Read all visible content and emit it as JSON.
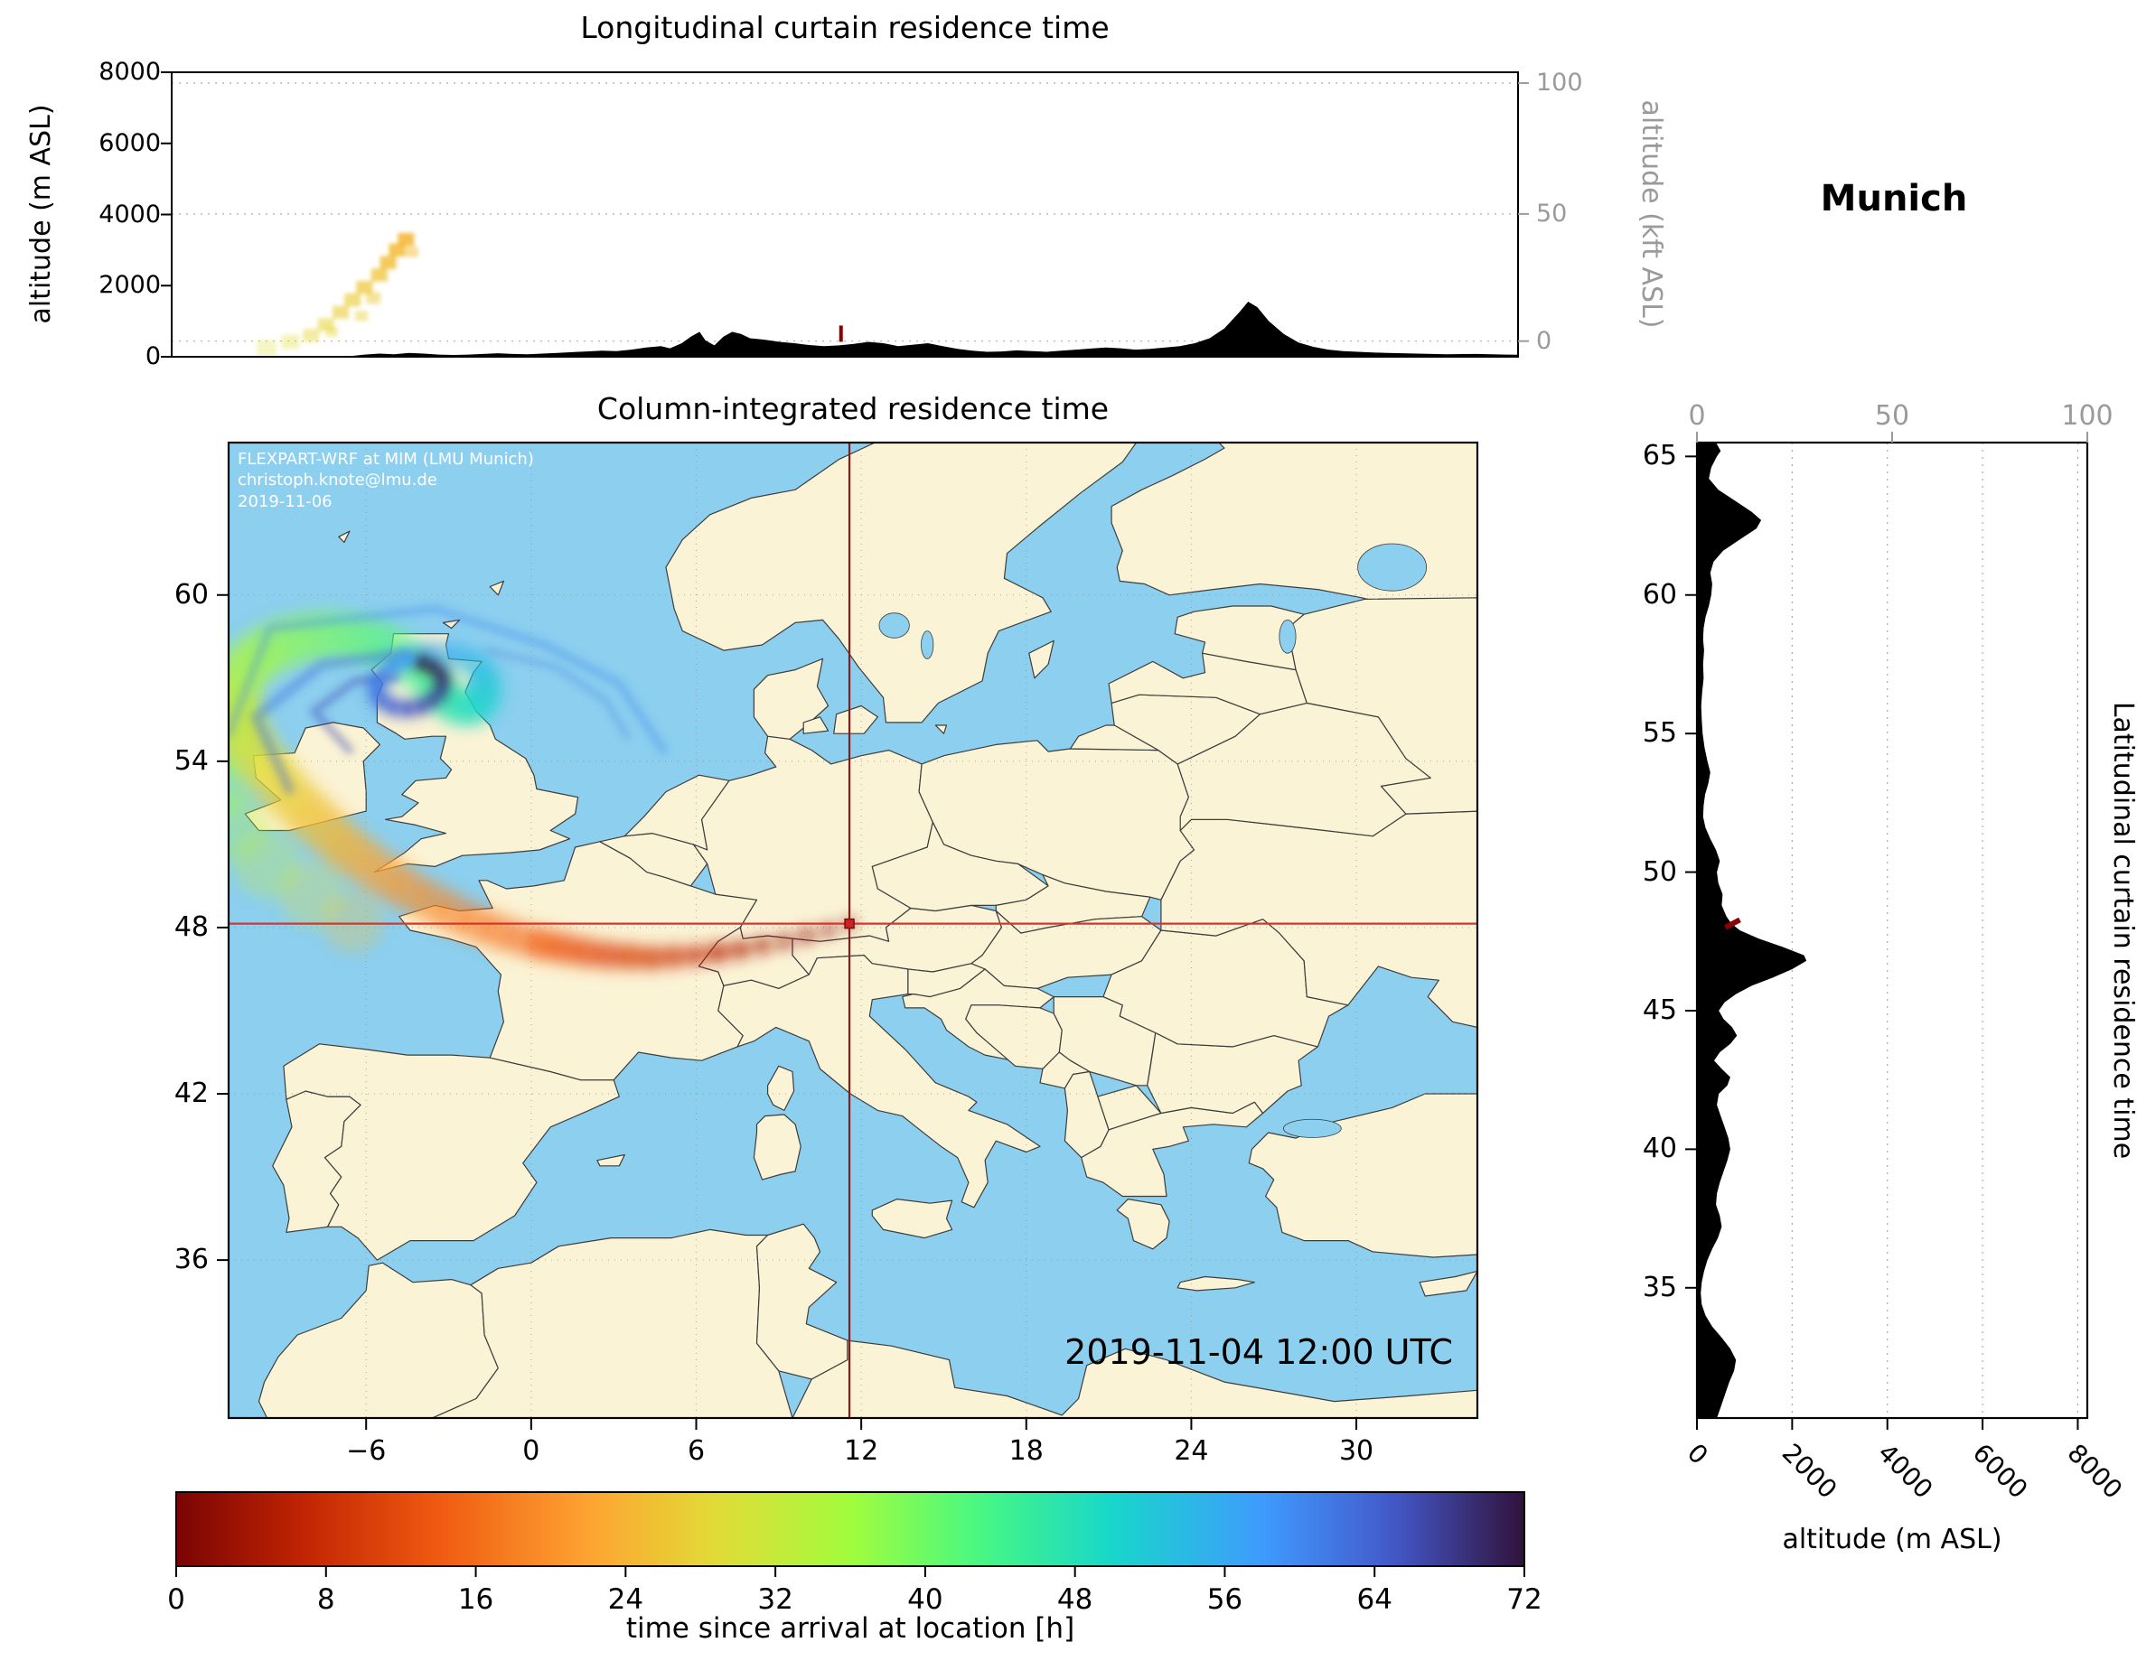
{
  "meta": {
    "location": "Munich",
    "timestamp": "2019-11-04 12:00 UTC",
    "credit_line1": "FLEXPART-WRF at MIM (LMU Munich)",
    "credit_line2": "christoph.knote@lmu.de",
    "credit_line3": "2019-11-06"
  },
  "colors": {
    "ocean": "#8ccfef",
    "land": "#fbf3d5",
    "border": "#3d3d3d",
    "terrain": "#000000",
    "crosshair_h": "#e03030",
    "crosshair_v": "#8c1a1a",
    "source_red": "#8b0000",
    "grid": "#aaaaaa",
    "axis_gray": "#9a9a9a"
  },
  "panels": {
    "longitudinal": {
      "title": "Longitudinal curtain residence time",
      "ylabel_left": "altitude (m ASL)",
      "ylabel_right": "altitude (kft ASL)",
      "yticks_left": [
        "8000",
        "6000",
        "4000",
        "2000",
        "0"
      ],
      "yticks_right": [
        "100",
        "50",
        "0"
      ]
    },
    "map": {
      "title": "Column-integrated residence time",
      "lon_ticks": [
        "−6",
        "0",
        "6",
        "12",
        "18",
        "24",
        "30"
      ],
      "lon_tick_values": [
        -6,
        0,
        6,
        12,
        18,
        24,
        30
      ],
      "lat_ticks": [
        "60",
        "54",
        "48",
        "42",
        "36"
      ],
      "lat_tick_values": [
        60,
        54,
        48,
        42,
        36
      ]
    },
    "latitudinal": {
      "title": "Latitudinal curtain residence time",
      "xlabel": "altitude (m ASL)",
      "xticks_bottom": [
        0,
        2000,
        4000,
        6000,
        8000
      ],
      "xticks_top": [
        "0",
        "50",
        "100"
      ],
      "lat_ticks": [
        65,
        60,
        55,
        50,
        45,
        40,
        35
      ]
    },
    "colorbar": {
      "label": "time since arrival at location [h]",
      "ticks": [
        0,
        8,
        16,
        24,
        32,
        40,
        48,
        56,
        64,
        72
      ]
    }
  },
  "chart_data": {
    "type": "map+curtains",
    "source": {
      "name": "Munich",
      "lon": 11.57,
      "lat": 48.14
    },
    "map_extent": {
      "lon_min": -11.0,
      "lon_max": 34.4,
      "lat_min": 30.3,
      "lat_max": 65.5
    },
    "alt_axis_max_m": 8000,
    "time_axis_hours": [
      0,
      72
    ],
    "colormap_hours_to_hex": [
      [
        0,
        "#7a0403"
      ],
      [
        7,
        "#c42503"
      ],
      [
        14,
        "#ef5a11"
      ],
      [
        22,
        "#fea331"
      ],
      [
        29,
        "#e1dd37"
      ],
      [
        36,
        "#a2fc3c"
      ],
      [
        43,
        "#46f884"
      ],
      [
        50,
        "#18d6cb"
      ],
      [
        58,
        "#3e9bfe"
      ],
      [
        65,
        "#4458cb"
      ],
      [
        72,
        "#30123b"
      ]
    ],
    "trajectory": [
      [
        11.57,
        48.14,
        0,
        6
      ],
      [
        10.8,
        47.9,
        1,
        7
      ],
      [
        10.0,
        47.7,
        2,
        8
      ],
      [
        9.2,
        47.5,
        3,
        8
      ],
      [
        8.4,
        47.35,
        4,
        9
      ],
      [
        7.6,
        47.2,
        5,
        10
      ],
      [
        6.8,
        47.1,
        6,
        11
      ],
      [
        6.0,
        47.0,
        7,
        12
      ],
      [
        5.2,
        46.95,
        8,
        13
      ],
      [
        4.4,
        46.9,
        9,
        14
      ],
      [
        3.6,
        46.95,
        10,
        15
      ],
      [
        2.8,
        47.0,
        11,
        16
      ],
      [
        2.0,
        47.1,
        12,
        17
      ],
      [
        1.2,
        47.25,
        13,
        18
      ],
      [
        0.4,
        47.4,
        14,
        19
      ],
      [
        -0.4,
        47.6,
        15,
        20
      ],
      [
        -1.2,
        47.85,
        16,
        21
      ],
      [
        -2.0,
        48.15,
        17,
        22
      ],
      [
        -2.8,
        48.5,
        18,
        23
      ],
      [
        -3.6,
        48.9,
        19,
        24
      ],
      [
        -4.4,
        49.3,
        20,
        25
      ],
      [
        -5.1,
        49.75,
        21,
        26
      ],
      [
        -5.8,
        50.2,
        22,
        27
      ],
      [
        -6.5,
        50.7,
        23,
        28
      ],
      [
        -7.1,
        51.2,
        24,
        28
      ],
      [
        -7.7,
        51.75,
        25,
        29
      ],
      [
        -8.3,
        52.3,
        26,
        29
      ],
      [
        -8.9,
        52.9,
        27,
        30
      ],
      [
        -9.4,
        53.5,
        28,
        30
      ],
      [
        -9.9,
        54.1,
        29,
        30
      ],
      [
        -10.3,
        54.7,
        30,
        31
      ],
      [
        -10.6,
        55.3,
        31,
        31
      ],
      [
        -10.8,
        55.9,
        32,
        31
      ],
      [
        -10.8,
        56.5,
        33,
        31
      ],
      [
        -10.6,
        57.1,
        34,
        31
      ],
      [
        -10.2,
        57.6,
        35,
        30
      ],
      [
        -9.6,
        58.0,
        36,
        30
      ],
      [
        -8.9,
        58.3,
        37,
        30
      ],
      [
        -8.1,
        58.5,
        38,
        29
      ],
      [
        -7.3,
        58.55,
        39,
        29
      ],
      [
        -6.5,
        58.5,
        40,
        28
      ],
      [
        -5.7,
        58.3,
        41,
        28
      ],
      [
        -5.0,
        58.0,
        42,
        27
      ],
      [
        -4.4,
        57.6,
        43,
        26
      ],
      [
        -3.9,
        57.2,
        44,
        25
      ],
      [
        -3.5,
        56.8,
        45,
        24
      ],
      [
        -3.2,
        56.4,
        46,
        23
      ],
      [
        -2.9,
        56.1,
        47,
        22
      ],
      [
        -2.5,
        55.9,
        48,
        21
      ],
      [
        -2.1,
        55.9,
        49,
        20
      ],
      [
        -1.8,
        56.1,
        50,
        19
      ],
      [
        -1.6,
        56.5,
        51,
        18
      ],
      [
        -1.6,
        56.9,
        52,
        17
      ],
      [
        -1.8,
        57.3,
        53,
        16
      ],
      [
        -2.2,
        57.6,
        54,
        15
      ],
      [
        -2.7,
        57.8,
        55,
        15
      ],
      [
        -3.3,
        57.9,
        56,
        14
      ],
      [
        -3.9,
        57.85,
        57,
        14
      ],
      [
        -4.5,
        57.7,
        58,
        13
      ],
      [
        -5.0,
        57.45,
        59,
        13
      ],
      [
        -5.4,
        57.15,
        60,
        12
      ],
      [
        -5.6,
        56.8,
        61,
        12
      ],
      [
        -5.6,
        56.45,
        62,
        11
      ],
      [
        -5.4,
        56.15,
        63,
        11
      ],
      [
        -5.0,
        55.95,
        64,
        11
      ],
      [
        -4.5,
        55.9,
        65,
        10
      ],
      [
        -4.0,
        56.0,
        66,
        10
      ],
      [
        -3.6,
        56.2,
        67,
        10
      ],
      [
        -3.3,
        56.5,
        68,
        10
      ],
      [
        -3.2,
        56.85,
        69,
        10
      ],
      [
        -3.3,
        57.15,
        70,
        10
      ],
      [
        -3.6,
        57.4,
        71,
        10
      ],
      [
        -4.0,
        57.55,
        72,
        10
      ]
    ],
    "fan": [
      [
        -6.5,
        48.2,
        26,
        34
      ],
      [
        -8.0,
        49.2,
        29,
        36
      ],
      [
        -9.6,
        50.3,
        32,
        38
      ],
      [
        -10.8,
        51.6,
        34,
        38
      ],
      [
        -11.4,
        53.0,
        36,
        36
      ],
      [
        -11.2,
        54.5,
        38,
        34
      ]
    ],
    "wisps": [
      {
        "t": 60,
        "w": 9,
        "o": 0.38,
        "pts": [
          [
            -11,
            55.0
          ],
          [
            -9.5,
            58.8
          ],
          [
            -3.5,
            59.5
          ],
          [
            0.5,
            58.2
          ],
          [
            3.2,
            56.8
          ],
          [
            4.8,
            54.4
          ]
        ]
      },
      {
        "t": 63,
        "w": 12,
        "o": 0.4,
        "pts": [
          [
            -8.8,
            53.0
          ],
          [
            -10.0,
            55.6
          ],
          [
            -7.6,
            57.5
          ],
          [
            -4.6,
            57.9
          ]
        ]
      },
      {
        "t": 66,
        "w": 9,
        "o": 0.45,
        "pts": [
          [
            -6.6,
            54.4
          ],
          [
            -7.9,
            55.8
          ],
          [
            -6.4,
            56.9
          ],
          [
            -4.9,
            57.0
          ]
        ]
      },
      {
        "t": 62,
        "w": 7,
        "o": 0.3,
        "pts": [
          [
            -1.6,
            58.0
          ],
          [
            0.9,
            57.4
          ],
          [
            2.7,
            56.2
          ],
          [
            3.5,
            54.9
          ]
        ]
      }
    ],
    "curtain_patches": [
      [
        -7.8,
        250,
        29,
        22,
        0.3
      ],
      [
        -7.0,
        420,
        29,
        20,
        0.35
      ],
      [
        -6.3,
        600,
        28,
        18,
        0.45
      ],
      [
        -5.8,
        900,
        28,
        18,
        0.55
      ],
      [
        -5.3,
        1250,
        27,
        18,
        0.6
      ],
      [
        -4.9,
        1600,
        27,
        18,
        0.65
      ],
      [
        -4.5,
        1950,
        26,
        18,
        0.7
      ],
      [
        -4.2,
        1650,
        27,
        16,
        0.5
      ],
      [
        -4.0,
        2300,
        26,
        18,
        0.75
      ],
      [
        -3.7,
        2650,
        25,
        18,
        0.8
      ],
      [
        -3.4,
        3000,
        25,
        18,
        0.85
      ],
      [
        -3.1,
        3300,
        24,
        18,
        0.85
      ],
      [
        -2.9,
        2950,
        25,
        14,
        0.5
      ],
      [
        -4.6,
        1150,
        27,
        14,
        0.45
      ],
      [
        -5.6,
        700,
        28,
        14,
        0.4
      ]
    ],
    "source_markers": {
      "longitudinal": {
        "lon": 11.57,
        "alt_m": 650
      },
      "latitudinal": {
        "lat": 48.14,
        "alt_m": 750
      }
    },
    "lon_terrain": [
      [
        -11,
        5
      ],
      [
        -9,
        5
      ],
      [
        -7,
        8
      ],
      [
        -6,
        10
      ],
      [
        -5,
        15
      ],
      [
        -4.5,
        60
      ],
      [
        -4,
        90
      ],
      [
        -3.5,
        70
      ],
      [
        -3,
        110
      ],
      [
        -2.5,
        90
      ],
      [
        -2,
        60
      ],
      [
        -1.5,
        50
      ],
      [
        -1,
        60
      ],
      [
        -0.5,
        80
      ],
      [
        0,
        100
      ],
      [
        0.5,
        80
      ],
      [
        1,
        70
      ],
      [
        1.5,
        90
      ],
      [
        2,
        110
      ],
      [
        2.5,
        130
      ],
      [
        3,
        150
      ],
      [
        3.5,
        170
      ],
      [
        4,
        160
      ],
      [
        4.5,
        200
      ],
      [
        5,
        260
      ],
      [
        5.5,
        300
      ],
      [
        5.8,
        240
      ],
      [
        6.2,
        380
      ],
      [
        6.5,
        560
      ],
      [
        6.8,
        700
      ],
      [
        7.0,
        460
      ],
      [
        7.3,
        320
      ],
      [
        7.6,
        560
      ],
      [
        7.9,
        700
      ],
      [
        8.2,
        640
      ],
      [
        8.5,
        520
      ],
      [
        9,
        480
      ],
      [
        9.5,
        420
      ],
      [
        10,
        380
      ],
      [
        10.5,
        330
      ],
      [
        11,
        300
      ],
      [
        11.5,
        320
      ],
      [
        12,
        360
      ],
      [
        12.5,
        420
      ],
      [
        13,
        380
      ],
      [
        13.5,
        300
      ],
      [
        14,
        340
      ],
      [
        14.5,
        380
      ],
      [
        15,
        300
      ],
      [
        15.5,
        220
      ],
      [
        16,
        170
      ],
      [
        16.5,
        140
      ],
      [
        17,
        150
      ],
      [
        17.5,
        180
      ],
      [
        18,
        160
      ],
      [
        18.5,
        140
      ],
      [
        19,
        170
      ],
      [
        19.5,
        200
      ],
      [
        20,
        230
      ],
      [
        20.5,
        260
      ],
      [
        21,
        240
      ],
      [
        21.5,
        200
      ],
      [
        22,
        220
      ],
      [
        22.5,
        260
      ],
      [
        23,
        300
      ],
      [
        23.5,
        380
      ],
      [
        24,
        520
      ],
      [
        24.5,
        800
      ],
      [
        25,
        1250
      ],
      [
        25.3,
        1550
      ],
      [
        25.6,
        1400
      ],
      [
        26,
        1000
      ],
      [
        26.5,
        640
      ],
      [
        27,
        400
      ],
      [
        27.5,
        280
      ],
      [
        28,
        200
      ],
      [
        28.5,
        160
      ],
      [
        29,
        140
      ],
      [
        29.5,
        120
      ],
      [
        30,
        110
      ],
      [
        30.5,
        100
      ],
      [
        31,
        90
      ],
      [
        31.5,
        80
      ],
      [
        32,
        70
      ],
      [
        32.5,
        75
      ],
      [
        33,
        80
      ],
      [
        33.5,
        70
      ],
      [
        34,
        60
      ],
      [
        34.4,
        55
      ]
    ],
    "lat_terrain": [
      [
        65.5,
        400
      ],
      [
        65.2,
        500
      ],
      [
        65.0,
        420
      ],
      [
        64.6,
        300
      ],
      [
        64.2,
        250
      ],
      [
        63.8,
        450
      ],
      [
        63.4,
        800
      ],
      [
        63.0,
        1150
      ],
      [
        62.7,
        1350
      ],
      [
        62.4,
        1250
      ],
      [
        62.0,
        900
      ],
      [
        61.6,
        550
      ],
      [
        61.2,
        350
      ],
      [
        60.8,
        280
      ],
      [
        60.4,
        320
      ],
      [
        60.0,
        300
      ],
      [
        59.6,
        250
      ],
      [
        59.2,
        180
      ],
      [
        58.8,
        140
      ],
      [
        58.4,
        130
      ],
      [
        58.0,
        150
      ],
      [
        57.5,
        130
      ],
      [
        57.0,
        140
      ],
      [
        56.5,
        110
      ],
      [
        56.0,
        90
      ],
      [
        55.5,
        100
      ],
      [
        55.0,
        120
      ],
      [
        54.5,
        160
      ],
      [
        54.0,
        220
      ],
      [
        53.6,
        280
      ],
      [
        53.2,
        240
      ],
      [
        52.8,
        170
      ],
      [
        52.4,
        140
      ],
      [
        52.0,
        130
      ],
      [
        51.6,
        180
      ],
      [
        51.2,
        280
      ],
      [
        50.8,
        400
      ],
      [
        50.4,
        480
      ],
      [
        50.0,
        420
      ],
      [
        49.6,
        450
      ],
      [
        49.2,
        540
      ],
      [
        48.8,
        520
      ],
      [
        48.4,
        620
      ],
      [
        48.15,
        720
      ],
      [
        47.9,
        900
      ],
      [
        47.6,
        1300
      ],
      [
        47.3,
        1800
      ],
      [
        47.0,
        2250
      ],
      [
        46.8,
        2300
      ],
      [
        46.5,
        2000
      ],
      [
        46.2,
        1600
      ],
      [
        45.9,
        1150
      ],
      [
        45.6,
        820
      ],
      [
        45.3,
        580
      ],
      [
        45.0,
        460
      ],
      [
        44.7,
        560
      ],
      [
        44.4,
        740
      ],
      [
        44.1,
        840
      ],
      [
        43.8,
        700
      ],
      [
        43.5,
        480
      ],
      [
        43.2,
        360
      ],
      [
        42.9,
        520
      ],
      [
        42.6,
        700
      ],
      [
        42.3,
        640
      ],
      [
        42.0,
        460
      ],
      [
        41.6,
        420
      ],
      [
        41.2,
        500
      ],
      [
        40.8,
        580
      ],
      [
        40.4,
        660
      ],
      [
        40.0,
        700
      ],
      [
        39.6,
        640
      ],
      [
        39.2,
        560
      ],
      [
        38.8,
        480
      ],
      [
        38.4,
        420
      ],
      [
        38.0,
        400
      ],
      [
        37.6,
        480
      ],
      [
        37.2,
        520
      ],
      [
        36.8,
        440
      ],
      [
        36.4,
        320
      ],
      [
        36.0,
        220
      ],
      [
        35.6,
        150
      ],
      [
        35.2,
        100
      ],
      [
        34.8,
        80
      ],
      [
        34.4,
        100
      ],
      [
        34.0,
        180
      ],
      [
        33.6,
        320
      ],
      [
        33.2,
        520
      ],
      [
        32.8,
        700
      ],
      [
        32.4,
        820
      ],
      [
        32.0,
        780
      ],
      [
        31.6,
        680
      ],
      [
        31.2,
        600
      ],
      [
        30.8,
        520
      ],
      [
        30.3,
        420
      ]
    ]
  }
}
